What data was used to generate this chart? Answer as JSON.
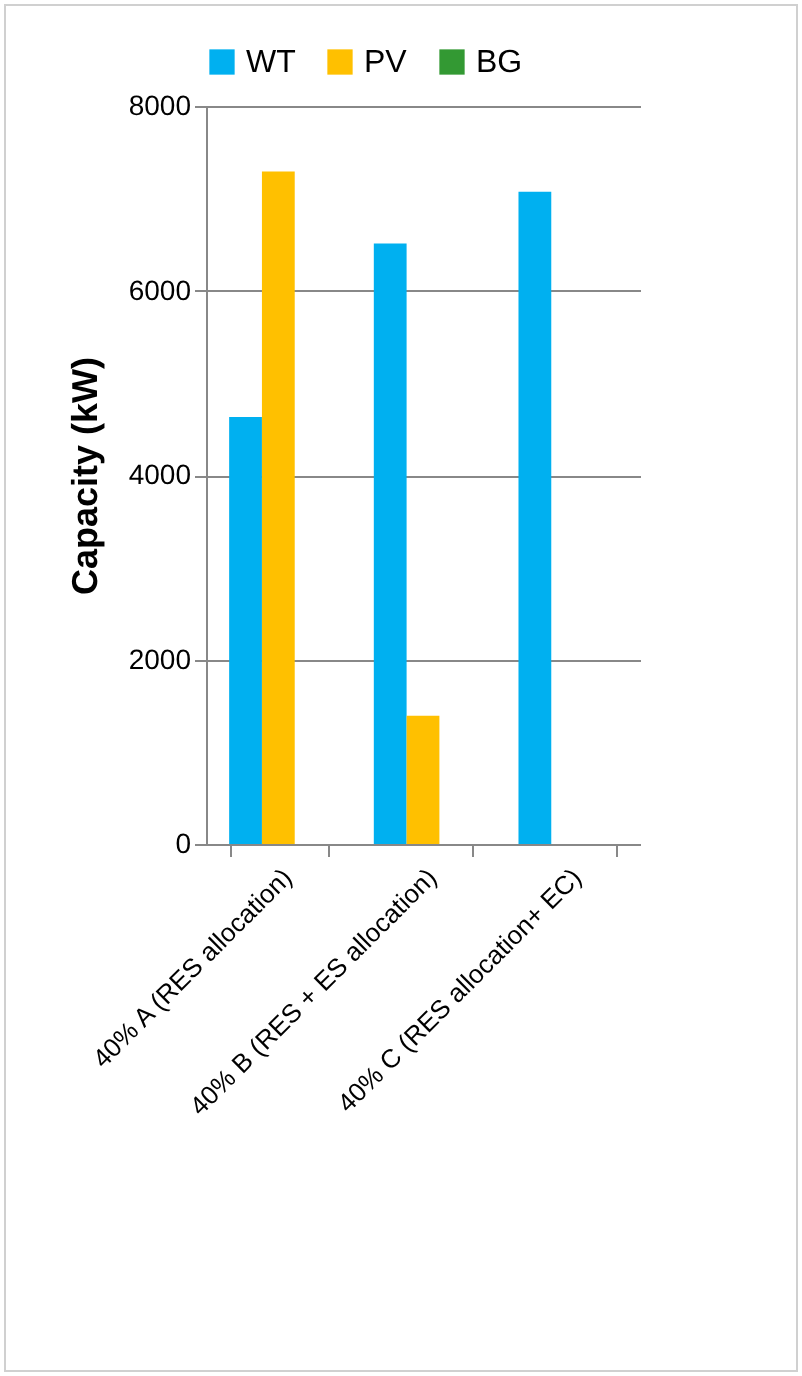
{
  "chart_data": {
    "type": "bar",
    "ylabel": "Capacity (kW)",
    "categories": [
      "40% A (RES allocation)",
      "40% B (RES + ES allocation)",
      "40% C (RES allocation+ EC)"
    ],
    "series": [
      {
        "name": "WT",
        "color": "#00b0f0",
        "values": [
          4630,
          6510,
          7070
        ]
      },
      {
        "name": "PV",
        "color": "#ffc000",
        "values": [
          7290,
          1390,
          0
        ]
      },
      {
        "name": "BG",
        "color": "#339933",
        "values": [
          0,
          0,
          0
        ]
      }
    ],
    "ylim": [
      0,
      8000
    ],
    "yticks": [
      0,
      2000,
      4000,
      6000,
      8000
    ],
    "grid": "y",
    "legend": "top"
  }
}
